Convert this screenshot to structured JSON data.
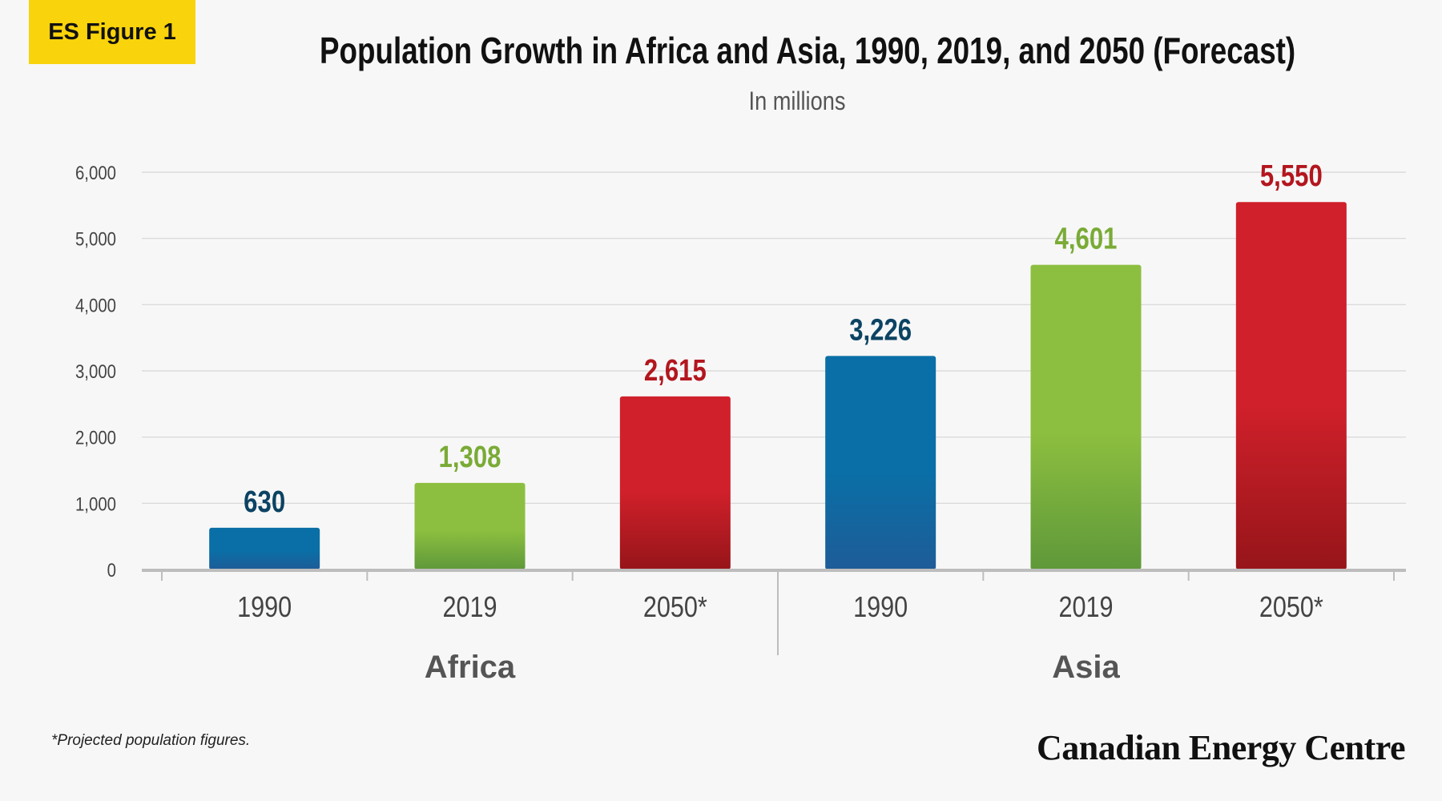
{
  "badge": "ES Figure 1",
  "footnote": "*Projected population figures.",
  "brand": "Canadian Energy Centre",
  "colors": {
    "blue": "#0a6fa6",
    "blue_dark": "#1e5c98",
    "green": "#8cbf3f",
    "green_dark": "#5f983a",
    "red": "#d0202b",
    "red_dark": "#961519",
    "label_blue": "#0c4363",
    "label_green": "#7aab36",
    "label_red": "#b3161e"
  },
  "chart_data": {
    "type": "bar",
    "title": "Population Growth in Africa and Asia, 1990, 2019, and 2050 (Forecast)",
    "subtitle": "In millions",
    "ylim": [
      0,
      6000
    ],
    "yticks": [
      "0",
      "1,000",
      "2,000",
      "3,000",
      "4,000",
      "5,000",
      "6,000"
    ],
    "ytick_values": [
      0,
      1000,
      2000,
      3000,
      4000,
      5000,
      6000
    ],
    "grid": true,
    "groups": [
      {
        "name": "Africa",
        "bars": [
          {
            "category": "1990",
            "value": 630,
            "label": "630",
            "color": "blue"
          },
          {
            "category": "2019",
            "value": 1308,
            "label": "1,308",
            "color": "green"
          },
          {
            "category": "2050*",
            "value": 2615,
            "label": "2,615",
            "color": "red"
          }
        ]
      },
      {
        "name": "Asia",
        "bars": [
          {
            "category": "1990",
            "value": 3226,
            "label": "3,226",
            "color": "blue"
          },
          {
            "category": "2019",
            "value": 4601,
            "label": "4,601",
            "color": "green"
          },
          {
            "category": "2050*",
            "value": 5550,
            "label": "5,550",
            "color": "red"
          }
        ]
      }
    ]
  }
}
